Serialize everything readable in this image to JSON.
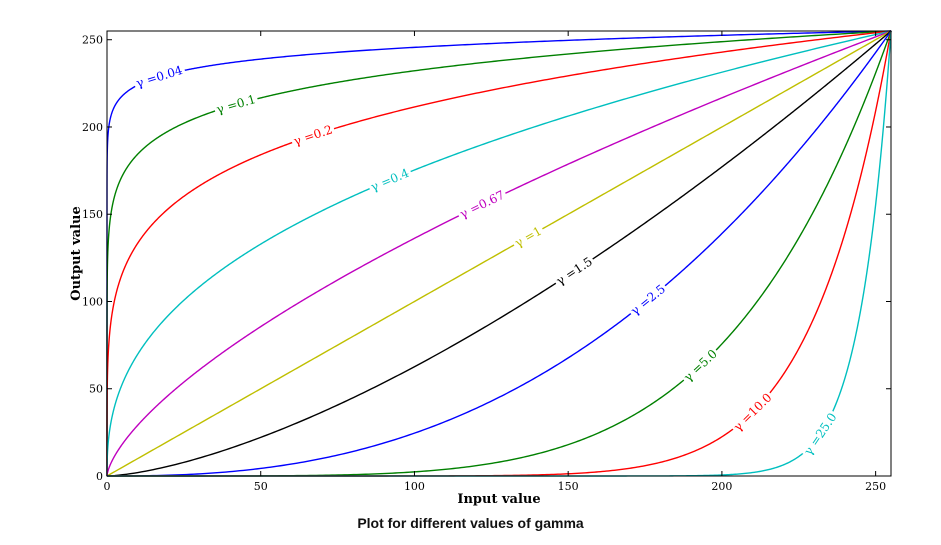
{
  "caption": "Plot for different values of gamma",
  "chart_data": {
    "type": "line",
    "title": "",
    "xlabel": "Input value",
    "ylabel": "Output value",
    "xlim": [
      0,
      255
    ],
    "ylim": [
      0,
      255
    ],
    "x_ticks": [
      0,
      50,
      100,
      150,
      200,
      250
    ],
    "y_ticks": [
      0,
      50,
      100,
      150,
      200,
      250
    ],
    "formula": "y = 255 * (x/255)^gamma",
    "series": [
      {
        "gamma": 0.04,
        "label": "γ =0.04",
        "color": "#0000ff"
      },
      {
        "gamma": 0.1,
        "label": "γ =0.1",
        "color": "#008000"
      },
      {
        "gamma": 0.2,
        "label": "γ =0.2",
        "color": "#ff0000"
      },
      {
        "gamma": 0.4,
        "label": "γ =0.4",
        "color": "#00bfbf"
      },
      {
        "gamma": 0.67,
        "label": "γ =0.67",
        "color": "#bf00bf"
      },
      {
        "gamma": 1,
        "label": "γ =1",
        "color": "#bfbf00"
      },
      {
        "gamma": 1.5,
        "label": "γ =1.5",
        "color": "#000000"
      },
      {
        "gamma": 2.5,
        "label": "γ =2.5",
        "color": "#0000ff"
      },
      {
        "gamma": 5.0,
        "label": "γ =5.0",
        "color": "#008000"
      },
      {
        "gamma": 10.0,
        "label": "γ =10.0",
        "color": "#ff0000"
      },
      {
        "gamma": 25.0,
        "label": "γ =25.0",
        "color": "#00bfbf"
      }
    ],
    "label_x_positions": [
      17,
      42,
      67,
      92,
      122,
      137,
      152,
      176,
      193,
      210,
      232
    ],
    "grid": false
  }
}
